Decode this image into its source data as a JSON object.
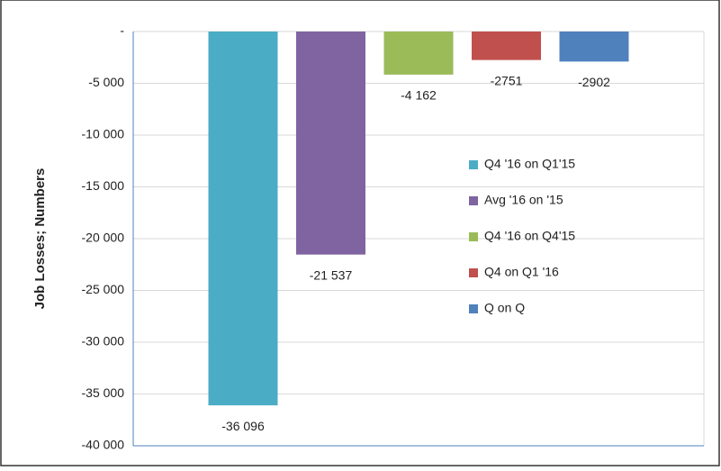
{
  "chart_data": {
    "type": "bar",
    "y_label": "Job Losses; Numbers",
    "categories": [
      null
    ],
    "series": [
      {
        "name": "Q4 '16 on Q1'15",
        "color": "#4bacc6",
        "values": [
          -36096
        ],
        "value_labels": [
          "-36 096"
        ]
      },
      {
        "name": "Avg '16 on '15",
        "color": "#8064a2",
        "values": [
          -21537
        ],
        "value_labels": [
          "-21 537"
        ]
      },
      {
        "name": "Q4 '16 on Q4'15",
        "color": "#9bbb59",
        "values": [
          -4162
        ],
        "value_labels": [
          "-4 162"
        ]
      },
      {
        "name": "Q4 on Q1 '16",
        "color": "#c0504d",
        "values": [
          -2751
        ]
      },
      {
        "name": "Q on Q",
        "color": "#4f81bd",
        "values": [
          -2902
        ]
      }
    ],
    "ylim": [
      -40000,
      0
    ],
    "yticks": [
      {
        "value": 0,
        "label": "-"
      },
      {
        "value": -5000,
        "label": "-5 000"
      },
      {
        "value": -10000,
        "label": "-10 000"
      },
      {
        "value": -15000,
        "label": "-15 000"
      },
      {
        "value": -20000,
        "label": "-20 000"
      },
      {
        "value": -25000,
        "label": "-25 000"
      },
      {
        "value": -30000,
        "label": "-30 000"
      },
      {
        "value": -35000,
        "label": "-35 000"
      },
      {
        "value": -40000,
        "label": "-40 000"
      }
    ],
    "grid": true,
    "legend": "right"
  }
}
